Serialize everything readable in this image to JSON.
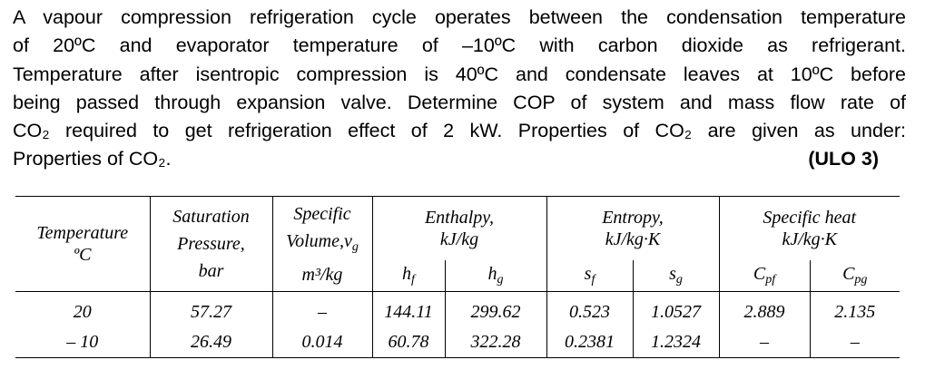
{
  "problem": {
    "lines": [
      "A vapour compression refrigeration cycle operates between the condensation temperature",
      "of 20ºC and evaporator temperature of –10ºC with carbon dioxide as refrigerant.",
      "Temperature after isentropic compression is 40ºC and condensate leaves at 10ºC before",
      "being passed through expansion valve. Determine COP of system and mass flow rate of",
      "CO₂ required to get refrigeration effect of 2 kW. Properties of CO₂ are given as under:",
      "Properties of CO₂."
    ],
    "ulo": "(ULO 3)"
  },
  "table": {
    "headers": {
      "temperature": [
        "Temperature",
        "ºC"
      ],
      "saturation_pressure": [
        "Saturation",
        "Pressure,",
        "bar"
      ],
      "specific_volume": [
        "Specific",
        "Volume,v",
        "g",
        "m³/kg"
      ],
      "enthalpy": [
        "Enthalpy,",
        "kJ/kg"
      ],
      "entropy": [
        "Entropy,",
        "kJ/kg·K"
      ],
      "specific_heat": [
        "Specific heat",
        "kJ/kg·K"
      ],
      "sub": {
        "hf": [
          "h",
          "f"
        ],
        "hg": [
          "h",
          "g"
        ],
        "sf": [
          "s",
          "f"
        ],
        "sg": [
          "s",
          "g"
        ],
        "cpf": [
          "C",
          "pf"
        ],
        "cpg": [
          "C",
          "pg"
        ]
      }
    },
    "rows": [
      [
        "20",
        "57.27",
        "–",
        "144.11",
        "299.62",
        "0.523",
        "1.0527",
        "2.889",
        "2.135"
      ],
      [
        "– 10",
        "26.49",
        "0.014",
        "60.78",
        "322.28",
        "0.2381",
        "1.2324",
        "–",
        "–"
      ]
    ]
  }
}
